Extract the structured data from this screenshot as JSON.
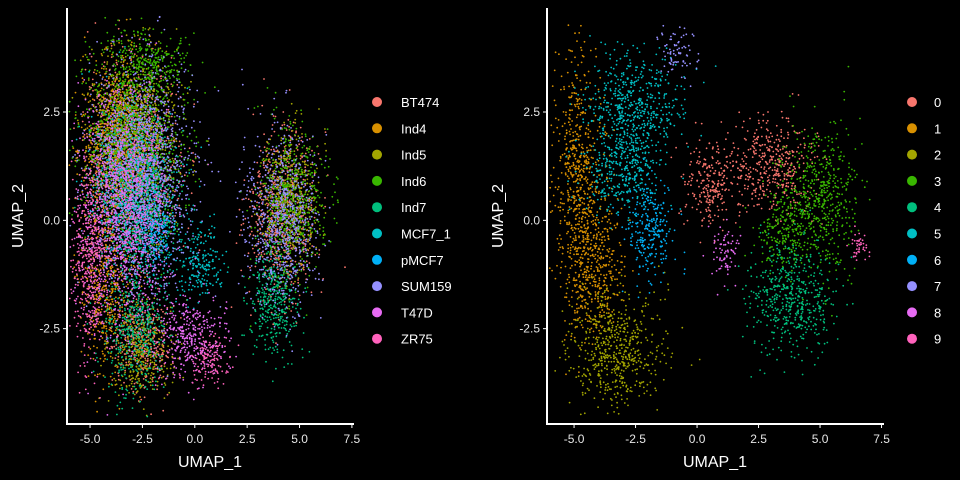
{
  "chart_data": [
    {
      "type": "scatter",
      "xlabel": "UMAP_1",
      "ylabel": "UMAP_2",
      "xlim": [
        -6.1,
        7.6
      ],
      "ylim": [
        -4.7,
        4.9
      ],
      "xticks": [
        {
          "value": -5.0,
          "label": "-5.0"
        },
        {
          "value": -2.5,
          "label": "-2.5"
        },
        {
          "value": 0.0,
          "label": "0.0"
        },
        {
          "value": 2.5,
          "label": "2.5"
        },
        {
          "value": 5.0,
          "label": "5.0"
        },
        {
          "value": 7.5,
          "label": "7.5"
        }
      ],
      "yticks": [
        {
          "value": 2.5,
          "label": "2.5"
        },
        {
          "value": 0.0,
          "label": "0.0"
        },
        {
          "value": -2.5,
          "label": "-2.5"
        }
      ],
      "legend_position": "right",
      "series": [
        {
          "name": "BT474",
          "color": "#F8766D",
          "regions": [
            [
              -3.0,
              1.5,
              2.0,
              1.9
            ],
            [
              4.2,
              0.2,
              1.5,
              1.7
            ],
            [
              -2.5,
              -2.8,
              1.3,
              1.0
            ]
          ]
        },
        {
          "name": "Ind4",
          "color": "#D89000",
          "regions": [
            [
              -3.8,
              1.8,
              1.5,
              1.8
            ],
            [
              -4.2,
              -1.5,
              1.2,
              1.5
            ]
          ]
        },
        {
          "name": "Ind5",
          "color": "#A3A500",
          "regions": [
            [
              -3.0,
              2.0,
              2.0,
              1.7
            ],
            [
              4.6,
              0.5,
              1.2,
              1.4
            ],
            [
              -2.6,
              -3.0,
              1.4,
              1.0
            ]
          ]
        },
        {
          "name": "Ind6",
          "color": "#39B600",
          "regions": [
            [
              -3.0,
              1.8,
              2.2,
              2.0
            ],
            [
              4.6,
              0.4,
              1.4,
              1.6
            ],
            [
              -2.0,
              3.6,
              1.5,
              0.6
            ]
          ]
        },
        {
          "name": "Ind7",
          "color": "#00BF7D",
          "regions": [
            [
              -2.8,
              -2.6,
              1.4,
              1.3
            ],
            [
              -2.5,
              0.2,
              1.6,
              1.4
            ],
            [
              3.8,
              -1.8,
              1.2,
              1.2
            ]
          ]
        },
        {
          "name": "MCF7_1",
          "color": "#00BFC4",
          "regions": [
            [
              -3.0,
              0.8,
              1.8,
              1.6
            ],
            [
              0.2,
              -1.0,
              1.0,
              0.8
            ]
          ]
        },
        {
          "name": "pMCF7",
          "color": "#00B0F6",
          "regions": [
            [
              -1.9,
              -0.3,
              0.8,
              0.8
            ]
          ]
        },
        {
          "name": "SUM159",
          "color": "#9590FF",
          "regions": [
            [
              -2.5,
              1.0,
              2.2,
              2.4
            ],
            [
              4.2,
              0.0,
              1.6,
              1.8
            ]
          ]
        },
        {
          "name": "T47D",
          "color": "#E76BF3",
          "regions": [
            [
              -0.2,
              -2.7,
              1.5,
              0.9
            ],
            [
              -3.5,
              0.2,
              2.0,
              2.4
            ]
          ]
        },
        {
          "name": "ZR75",
          "color": "#FF62BC",
          "regions": [
            [
              0.6,
              -3.2,
              1.0,
              0.5
            ],
            [
              -5.0,
              -1.0,
              0.8,
              2.0
            ]
          ]
        }
      ]
    },
    {
      "type": "scatter",
      "xlabel": "UMAP_1",
      "ylabel": "UMAP_2",
      "xlim": [
        -6.1,
        7.6
      ],
      "ylim": [
        -4.7,
        4.9
      ],
      "xticks": [
        {
          "value": -5.0,
          "label": "-5.0"
        },
        {
          "value": -2.5,
          "label": "-2.5"
        },
        {
          "value": 0.0,
          "label": "0.0"
        },
        {
          "value": 2.5,
          "label": "2.5"
        },
        {
          "value": 5.0,
          "label": "5.0"
        },
        {
          "value": 7.5,
          "label": "7.5"
        }
      ],
      "yticks": [
        {
          "value": 2.5,
          "label": "2.5"
        },
        {
          "value": 0.0,
          "label": "0.0"
        },
        {
          "value": -2.5,
          "label": "-2.5"
        }
      ],
      "legend_position": "right",
      "series": [
        {
          "name": "0",
          "color": "#F8766D",
          "regions": [
            [
              3.0,
              1.3,
              1.6,
              1.0
            ],
            [
              0.5,
              0.8,
              1.0,
              0.9
            ]
          ]
        },
        {
          "name": "1",
          "color": "#D89000",
          "regions": [
            [
              -4.8,
              1.0,
              0.9,
              2.6
            ],
            [
              -4.2,
              -1.2,
              1.0,
              1.5
            ]
          ]
        },
        {
          "name": "2",
          "color": "#A3A500",
          "regions": [
            [
              -3.3,
              -3.0,
              1.8,
              1.2
            ]
          ]
        },
        {
          "name": "3",
          "color": "#39B600",
          "regions": [
            [
              5.0,
              0.5,
              1.3,
              1.6
            ],
            [
              3.5,
              -0.3,
              0.9,
              0.9
            ]
          ]
        },
        {
          "name": "4",
          "color": "#00BF7D",
          "regions": [
            [
              3.9,
              -1.8,
              1.6,
              1.2
            ]
          ]
        },
        {
          "name": "5",
          "color": "#00BFC4",
          "regions": [
            [
              -2.6,
              2.6,
              1.8,
              1.1
            ],
            [
              -3.0,
              1.2,
              1.4,
              1.0
            ]
          ]
        },
        {
          "name": "6",
          "color": "#00B0F6",
          "regions": [
            [
              -1.9,
              -0.2,
              0.9,
              1.1
            ]
          ]
        },
        {
          "name": "7",
          "color": "#9590FF",
          "regions": [
            [
              -0.8,
              3.9,
              0.6,
              0.5
            ]
          ]
        },
        {
          "name": "8",
          "color": "#E76BF3",
          "regions": [
            [
              1.1,
              -0.7,
              0.5,
              0.6
            ]
          ]
        },
        {
          "name": "9",
          "color": "#FF62BC",
          "regions": [
            [
              6.6,
              -0.6,
              0.4,
              0.4
            ]
          ]
        }
      ]
    }
  ]
}
